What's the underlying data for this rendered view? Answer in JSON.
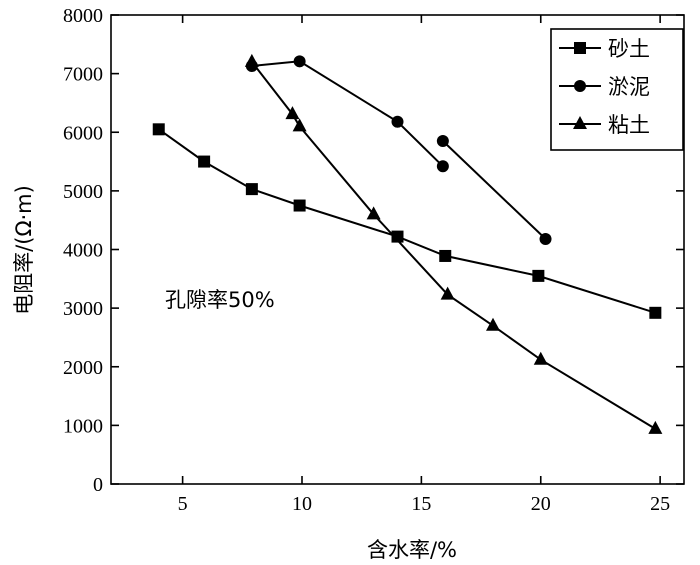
{
  "chart_data": {
    "type": "line",
    "title": "",
    "xlabel": "含水率/%",
    "ylabel": "电阻率/(Ω·m)",
    "xlim": [
      2,
      26
    ],
    "ylim": [
      0,
      8000
    ],
    "xticks": [
      5,
      10,
      15,
      20,
      25
    ],
    "yticks": [
      0,
      1000,
      2000,
      3000,
      4000,
      5000,
      6000,
      7000,
      8000
    ],
    "grid": false,
    "legend_position": "top-right",
    "annotation": "孔隙率50%",
    "series": [
      {
        "name": "砂土",
        "marker": "square",
        "points": [
          [
            4,
            6050
          ],
          [
            5.9,
            5500
          ],
          [
            7.9,
            5030
          ],
          [
            9.9,
            4750
          ],
          [
            14,
            4220
          ],
          [
            16,
            3890
          ],
          [
            19.9,
            3550
          ],
          [
            24.8,
            2920
          ]
        ]
      },
      {
        "name": "淤泥",
        "marker": "circle",
        "segments": [
          [
            [
              7.9,
              7130
            ],
            [
              9.9,
              7210
            ],
            [
              14,
              6180
            ],
            [
              15.9,
              5420
            ]
          ],
          [
            [
              15.9,
              5850
            ],
            [
              20.2,
              4180
            ]
          ]
        ]
      },
      {
        "name": "粘土",
        "marker": "triangle",
        "points": [
          [
            7.9,
            7200
          ],
          [
            9.6,
            6310
          ],
          [
            9.9,
            6100
          ],
          [
            13,
            4600
          ],
          [
            16.1,
            3230
          ],
          [
            18,
            2700
          ],
          [
            20,
            2120
          ],
          [
            24.8,
            940
          ]
        ]
      }
    ]
  }
}
